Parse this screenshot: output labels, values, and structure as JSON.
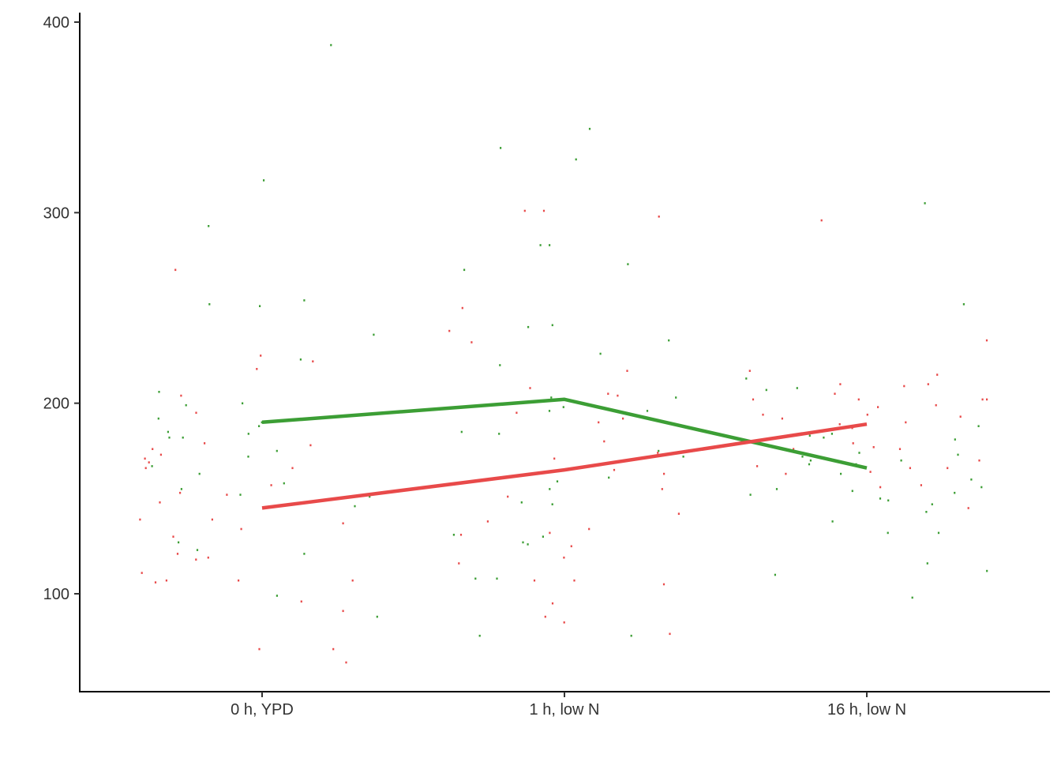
{
  "chart_data": {
    "type": "line",
    "title": "",
    "xlabel": "",
    "ylabel": "",
    "categories": [
      "0 h, YPD",
      "1 h, low N",
      "16 h, low N"
    ],
    "ylim": [
      50,
      402
    ],
    "yticks": [
      100,
      200,
      300,
      400
    ],
    "grid": false,
    "legend": "none",
    "series": [
      {
        "color": "#3C9E35",
        "values": [
          190,
          202,
          166
        ]
      },
      {
        "color": "#E84A4A",
        "values": [
          145,
          165,
          189
        ]
      }
    ],
    "points": [
      {
        "color": "#3C9E35",
        "data": [
          [
            0,
            251
          ],
          [
            0,
            99
          ],
          [
            0,
            185
          ],
          [
            0,
            163
          ],
          [
            0,
            172
          ],
          [
            0,
            317
          ],
          [
            0,
            206
          ],
          [
            0,
            146
          ],
          [
            0,
            158
          ],
          [
            0,
            152
          ],
          [
            0,
            252
          ],
          [
            0,
            388
          ],
          [
            0,
            223
          ],
          [
            0,
            192
          ],
          [
            0,
            190
          ],
          [
            0,
            123
          ],
          [
            0,
            121
          ],
          [
            0,
            127
          ],
          [
            0,
            175
          ],
          [
            0,
            188
          ],
          [
            0,
            182
          ],
          [
            0,
            167
          ],
          [
            0,
            151
          ],
          [
            0,
            88
          ],
          [
            0,
            182
          ],
          [
            0,
            184
          ],
          [
            0,
            236
          ],
          [
            0,
            199
          ],
          [
            0,
            200
          ],
          [
            0,
            146
          ],
          [
            0,
            254
          ],
          [
            0,
            293
          ],
          [
            0,
            155
          ],
          [
            1,
            172
          ],
          [
            1,
            203
          ],
          [
            1,
            184
          ],
          [
            1,
            328
          ],
          [
            1,
            127
          ],
          [
            1,
            78
          ],
          [
            1,
            78
          ],
          [
            1,
            240
          ],
          [
            1,
            126
          ],
          [
            1,
            185
          ],
          [
            1,
            233
          ],
          [
            1,
            334
          ],
          [
            1,
            175
          ],
          [
            1,
            159
          ],
          [
            1,
            220
          ],
          [
            1,
            344
          ],
          [
            1,
            283
          ],
          [
            1,
            273
          ],
          [
            1,
            168
          ],
          [
            1,
            108
          ],
          [
            1,
            108
          ],
          [
            1,
            147
          ],
          [
            1,
            270
          ],
          [
            1,
            131
          ],
          [
            1,
            130
          ],
          [
            1,
            161
          ],
          [
            1,
            226
          ],
          [
            1,
            203
          ],
          [
            1,
            148
          ],
          [
            1,
            196
          ],
          [
            1,
            198
          ],
          [
            1,
            283
          ],
          [
            1,
            196
          ],
          [
            1,
            241
          ],
          [
            1,
            155
          ],
          [
            2,
            168
          ],
          [
            2,
            172
          ],
          [
            2,
            143
          ],
          [
            2,
            155
          ],
          [
            2,
            170
          ],
          [
            2,
            147
          ],
          [
            2,
            153
          ],
          [
            2,
            156
          ],
          [
            2,
            160
          ],
          [
            2,
            181
          ],
          [
            2,
            116
          ],
          [
            2,
            170
          ],
          [
            2,
            150
          ],
          [
            2,
            152
          ],
          [
            2,
            182
          ],
          [
            2,
            184
          ],
          [
            2,
            208
          ],
          [
            2,
            163
          ],
          [
            2,
            98
          ],
          [
            2,
            305
          ],
          [
            2,
            183
          ],
          [
            2,
            188
          ],
          [
            2,
            213
          ],
          [
            2,
            138
          ],
          [
            2,
            132
          ],
          [
            2,
            154
          ],
          [
            2,
            207
          ],
          [
            2,
            112
          ],
          [
            2,
            168
          ],
          [
            2,
            173
          ],
          [
            2,
            149
          ],
          [
            2,
            174
          ],
          [
            2,
            110
          ],
          [
            2,
            132
          ],
          [
            2,
            252
          ]
        ]
      },
      {
        "color": "#E84A4A",
        "data": [
          [
            0,
            179
          ],
          [
            0,
            166
          ],
          [
            0,
            121
          ],
          [
            0,
            222
          ],
          [
            0,
            178
          ],
          [
            0,
            96
          ],
          [
            0,
            107
          ],
          [
            0,
            118
          ],
          [
            0,
            137
          ],
          [
            0,
            204
          ],
          [
            0,
            169
          ],
          [
            0,
            148
          ],
          [
            0,
            171
          ],
          [
            0,
            157
          ],
          [
            0,
            91
          ],
          [
            0,
            64
          ],
          [
            0,
            270
          ],
          [
            0,
            225
          ],
          [
            0,
            176
          ],
          [
            0,
            119
          ],
          [
            0,
            71
          ],
          [
            0,
            106
          ],
          [
            0,
            152
          ],
          [
            0,
            195
          ],
          [
            0,
            139
          ],
          [
            0,
            71
          ],
          [
            0,
            130
          ],
          [
            0,
            153
          ],
          [
            0,
            139
          ],
          [
            0,
            166
          ],
          [
            0,
            173
          ],
          [
            0,
            107
          ],
          [
            0,
            107
          ],
          [
            0,
            218
          ],
          [
            0,
            134
          ],
          [
            0,
            111
          ],
          [
            1,
            217
          ],
          [
            1,
            95
          ],
          [
            1,
            192
          ],
          [
            1,
            301
          ],
          [
            1,
            79
          ],
          [
            1,
            204
          ],
          [
            1,
            190
          ],
          [
            1,
            151
          ],
          [
            1,
            208
          ],
          [
            1,
            131
          ],
          [
            1,
            174
          ],
          [
            1,
            250
          ],
          [
            1,
            116
          ],
          [
            1,
            138
          ],
          [
            1,
            195
          ],
          [
            1,
            238
          ],
          [
            1,
            134
          ],
          [
            1,
            132
          ],
          [
            1,
            107
          ],
          [
            1,
            107
          ],
          [
            1,
            105
          ],
          [
            1,
            125
          ],
          [
            1,
            88
          ],
          [
            1,
            232
          ],
          [
            1,
            155
          ],
          [
            1,
            180
          ],
          [
            1,
            85
          ],
          [
            1,
            163
          ],
          [
            1,
            205
          ],
          [
            1,
            171
          ],
          [
            1,
            142
          ],
          [
            1,
            298
          ],
          [
            1,
            301
          ],
          [
            1,
            119
          ],
          [
            1,
            165
          ],
          [
            2,
            215
          ],
          [
            2,
            145
          ],
          [
            2,
            198
          ],
          [
            2,
            233
          ],
          [
            2,
            176
          ],
          [
            2,
            166
          ],
          [
            2,
            187
          ],
          [
            2,
            194
          ],
          [
            2,
            202
          ],
          [
            2,
            156
          ],
          [
            2,
            209
          ],
          [
            2,
            210
          ],
          [
            2,
            210
          ],
          [
            2,
            199
          ],
          [
            2,
            194
          ],
          [
            2,
            179
          ],
          [
            2,
            193
          ],
          [
            2,
            157
          ],
          [
            2,
            167
          ],
          [
            2,
            205
          ],
          [
            2,
            202
          ],
          [
            2,
            202
          ],
          [
            2,
            190
          ],
          [
            2,
            192
          ],
          [
            2,
            166
          ],
          [
            2,
            163
          ],
          [
            2,
            176
          ],
          [
            2,
            177
          ],
          [
            2,
            296
          ],
          [
            2,
            217
          ],
          [
            2,
            170
          ],
          [
            2,
            164
          ],
          [
            2,
            202
          ],
          [
            2,
            189
          ]
        ]
      }
    ]
  }
}
